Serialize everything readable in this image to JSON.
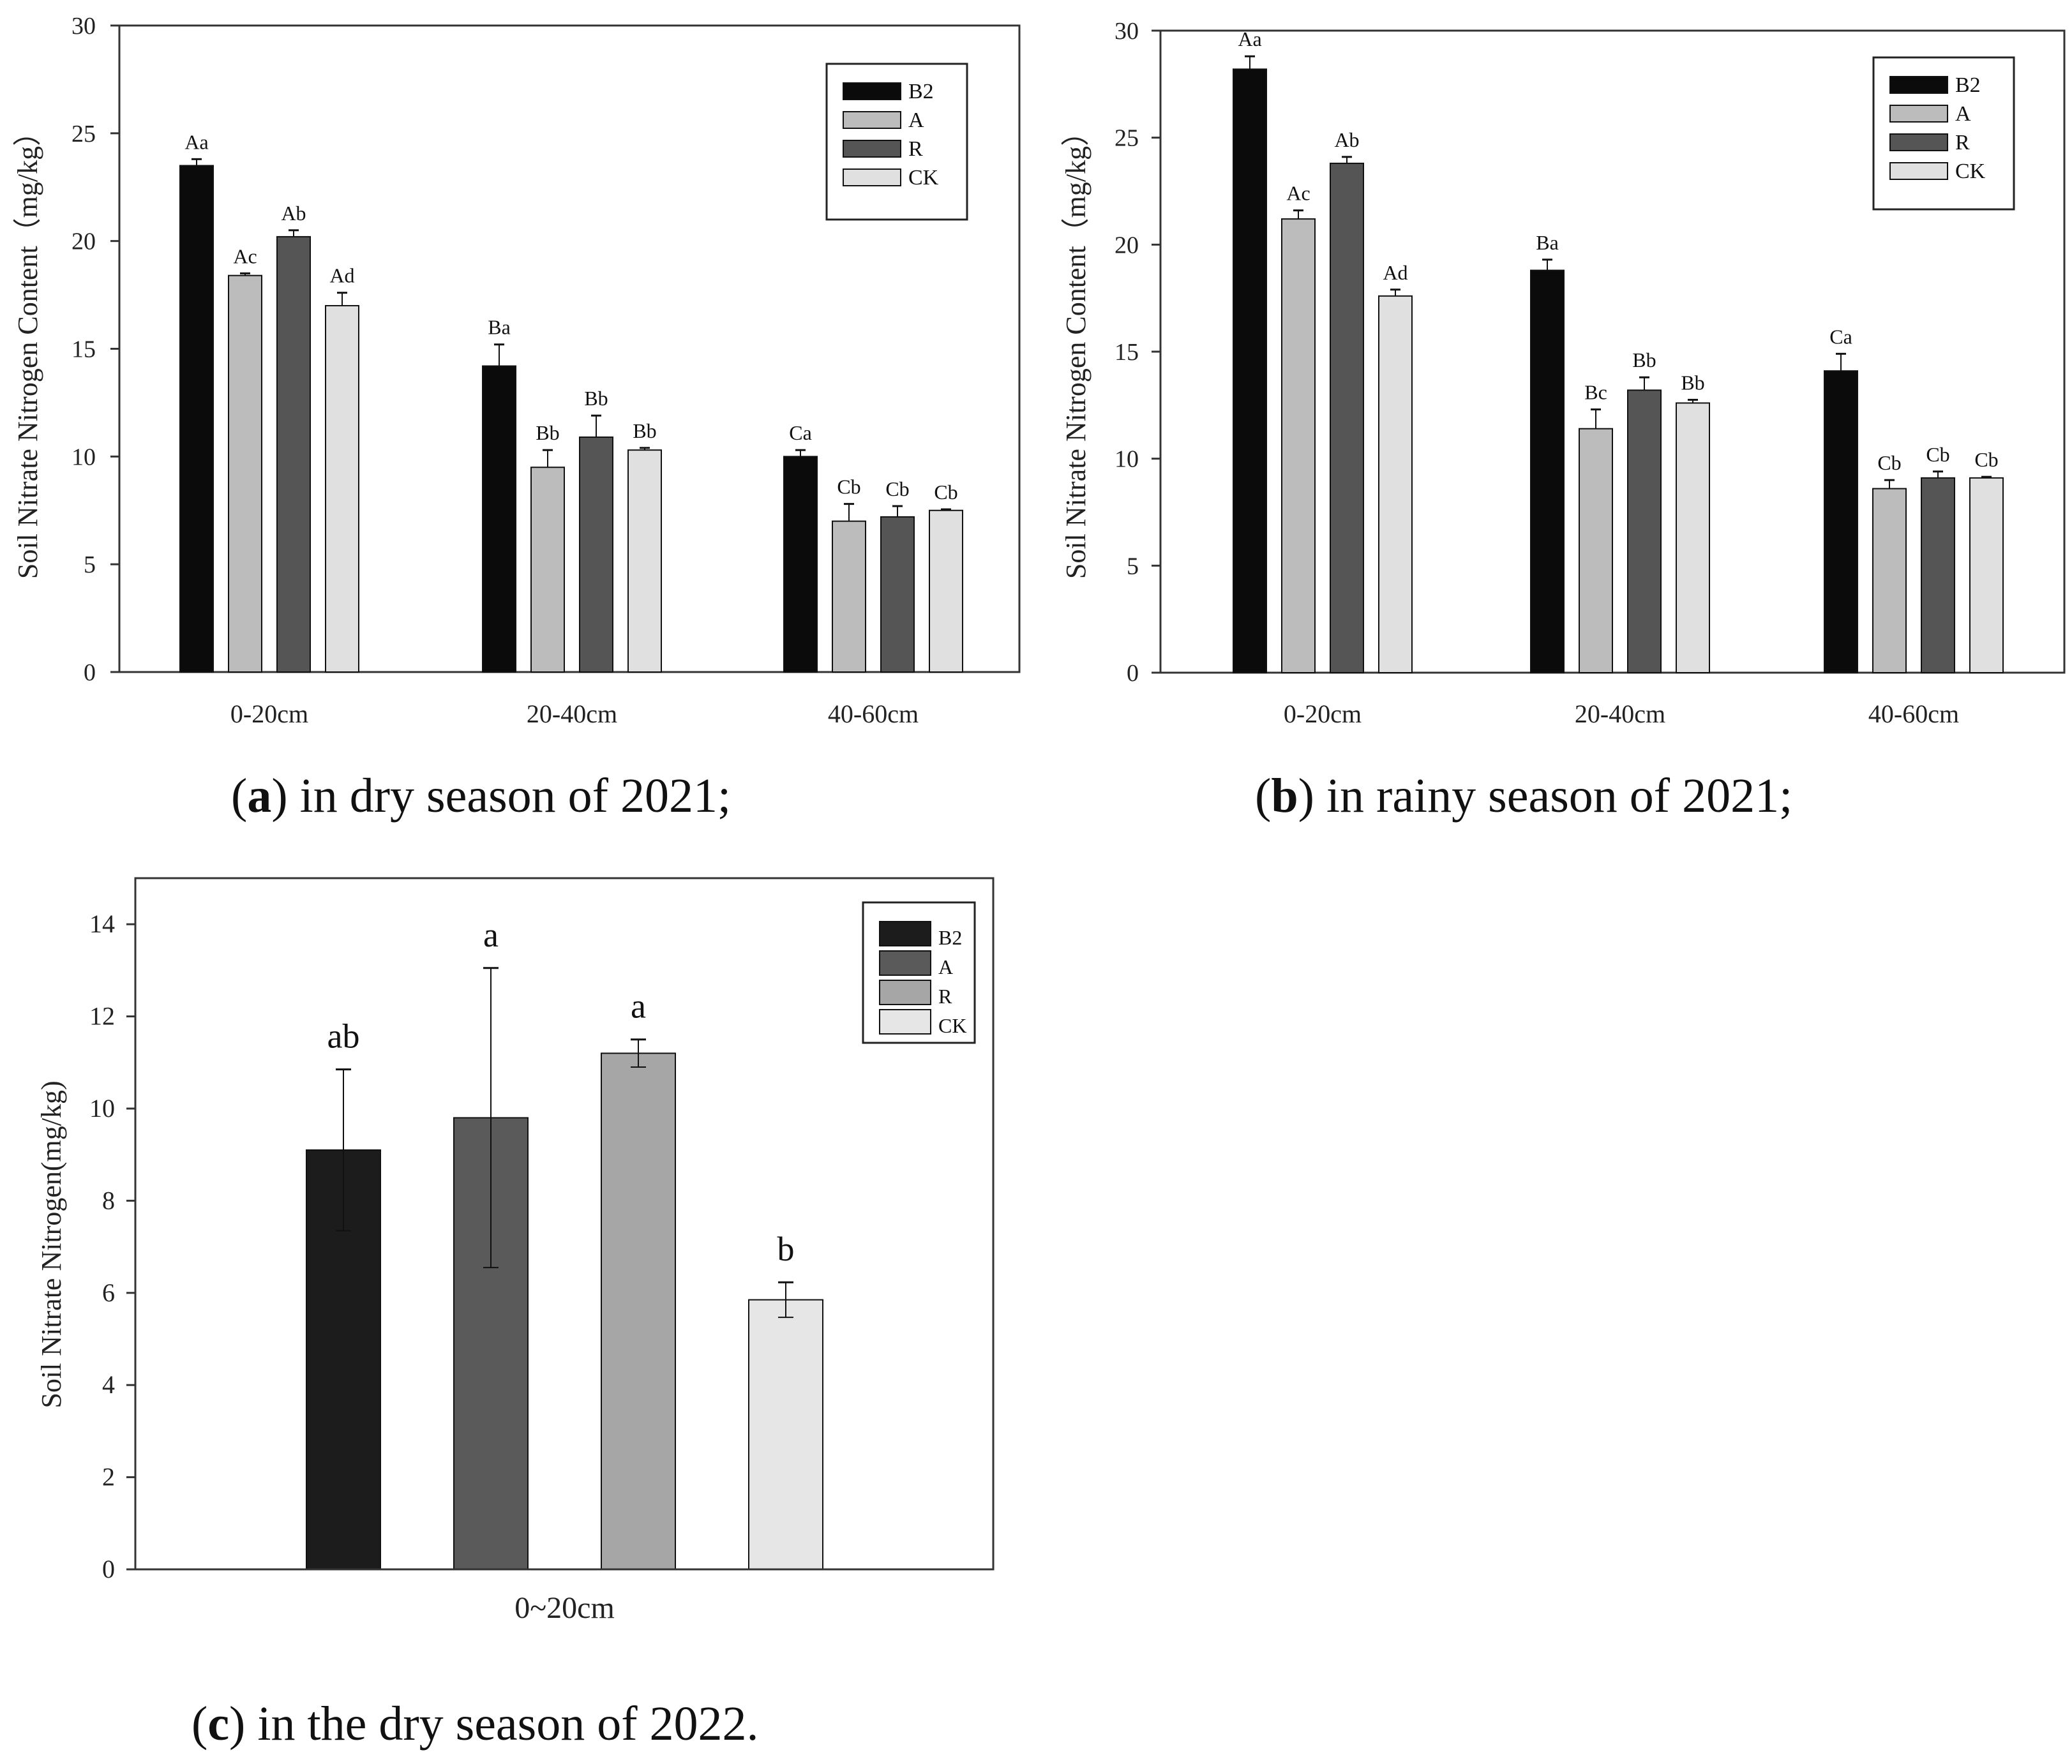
{
  "colors": {
    "B2": "#0b0b0b",
    "A": "#bcbcbc",
    "R": "#555555",
    "CK": "#e0e0e0",
    "c_B2": "#1c1c1c",
    "c_A": "#5a5a5a",
    "c_R": "#a6a6a6",
    "c_CK": "#e6e6e6",
    "axis": "#222222"
  },
  "chart_data": [
    {
      "id": "a",
      "type": "bar",
      "caption_letter": "a",
      "caption_text": ") in dry season of 2021;",
      "ylabel": "Soil Nitrate Nitrogen Content（mg/kg）",
      "xlabel": "",
      "ylim": [
        0,
        30
      ],
      "yticks": [
        "0",
        "5",
        "10",
        "15",
        "20",
        "25",
        "30"
      ],
      "categories": [
        "0-20cm",
        "20-40cm",
        "40-60cm"
      ],
      "legend": [
        "B2",
        "A",
        "R",
        "CK"
      ],
      "legend_position": "top-right",
      "series": [
        {
          "name": "B2",
          "values": [
            23.5,
            14.2,
            10.0
          ],
          "errors": [
            0.3,
            1.0,
            0.3
          ],
          "labels": [
            "Aa",
            "Ba",
            "Ca"
          ]
        },
        {
          "name": "A",
          "values": [
            18.4,
            9.5,
            7.0
          ],
          "errors": [
            0.1,
            0.8,
            0.8
          ],
          "labels": [
            "Ac",
            "Bb",
            "Cb"
          ]
        },
        {
          "name": "R",
          "values": [
            20.2,
            10.9,
            7.2
          ],
          "errors": [
            0.3,
            1.0,
            0.5
          ],
          "labels": [
            "Ab",
            "Bb",
            "Cb"
          ]
        },
        {
          "name": "CK",
          "values": [
            17.0,
            10.3,
            7.5
          ],
          "errors": [
            0.6,
            0.1,
            0.05
          ],
          "labels": [
            "Ad",
            "Bb",
            "Cb"
          ]
        }
      ]
    },
    {
      "id": "b",
      "type": "bar",
      "caption_letter": "b",
      "caption_text": ") in rainy season of 2021;",
      "ylabel": "Soil Nitrate Nitrogen Content（mg/kg）",
      "xlabel": "",
      "ylim": [
        0,
        30
      ],
      "yticks": [
        "0",
        "5",
        "10",
        "15",
        "20",
        "25",
        "30"
      ],
      "categories": [
        "0-20cm",
        "20-40cm",
        "40-60cm"
      ],
      "legend": [
        "B2",
        "A",
        "R",
        "CK"
      ],
      "legend_position": "top-right",
      "series": [
        {
          "name": "B2",
          "values": [
            28.2,
            18.8,
            14.1
          ],
          "errors": [
            0.6,
            0.5,
            0.8
          ],
          "labels": [
            "Aa",
            "Ba",
            "Ca"
          ]
        },
        {
          "name": "A",
          "values": [
            21.2,
            11.4,
            8.6
          ],
          "errors": [
            0.4,
            0.9,
            0.4
          ],
          "labels": [
            "Ac",
            "Bc",
            "Cb"
          ]
        },
        {
          "name": "R",
          "values": [
            23.8,
            13.2,
            9.1
          ],
          "errors": [
            0.3,
            0.6,
            0.3
          ],
          "labels": [
            "Ab",
            "Bb",
            "Cb"
          ]
        },
        {
          "name": "CK",
          "values": [
            17.6,
            12.6,
            9.1
          ],
          "errors": [
            0.3,
            0.15,
            0.05
          ],
          "labels": [
            "Ad",
            "Bb",
            "Cb"
          ]
        }
      ]
    },
    {
      "id": "c",
      "type": "bar",
      "caption_letter": "c",
      "caption_text": ") in the dry season of 2022.",
      "ylabel": "Soil Nitrate Nitrogen(mg/kg)",
      "xlabel": "",
      "ylim": [
        0,
        15
      ],
      "yticks": [
        "0",
        "2",
        "4",
        "6",
        "8",
        "10",
        "12",
        "14"
      ],
      "categories": [
        "0~20cm"
      ],
      "legend": [
        "B2",
        "A",
        "R",
        "CK"
      ],
      "legend_position": "top-right",
      "series": [
        {
          "name": "B2",
          "values": [
            9.1
          ],
          "errors": [
            1.75
          ],
          "labels": [
            "ab"
          ]
        },
        {
          "name": "A",
          "values": [
            9.8
          ],
          "errors": [
            3.25
          ],
          "labels": [
            "a"
          ]
        },
        {
          "name": "R",
          "values": [
            11.2
          ],
          "errors": [
            0.3
          ],
          "labels": [
            "a"
          ]
        },
        {
          "name": "CK",
          "values": [
            5.85
          ],
          "errors": [
            0.38
          ],
          "labels": [
            "b"
          ]
        }
      ]
    }
  ]
}
